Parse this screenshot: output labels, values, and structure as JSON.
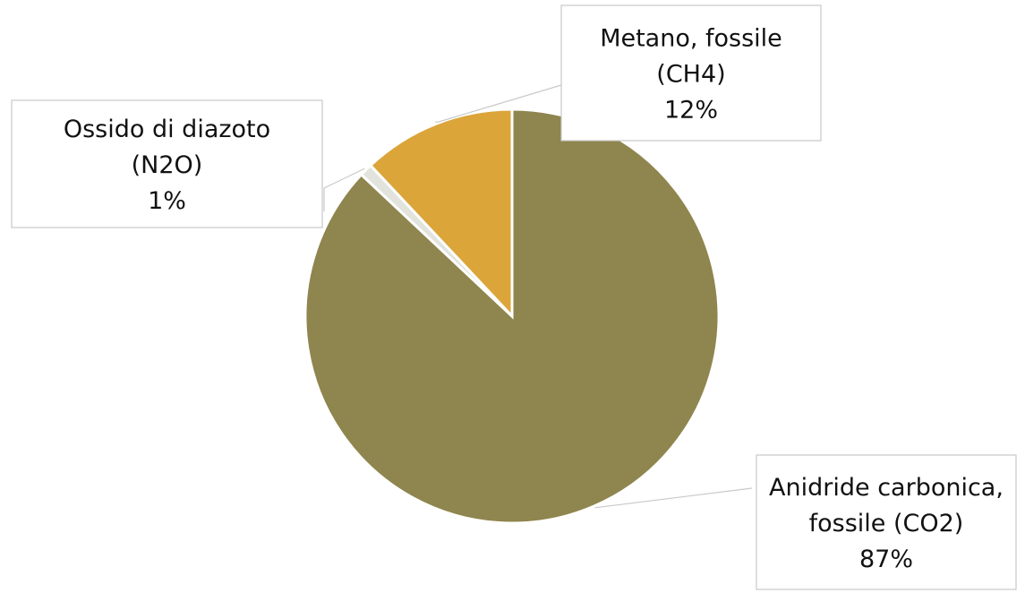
{
  "chart_data": {
    "type": "pie",
    "title": "",
    "slices": [
      {
        "category": "Anidride carbonica, fossile (CO2)",
        "label_lines": [
          "Anidride carbonica,",
          "fossile (CO2)"
        ],
        "value": 87,
        "percent_label": "87%",
        "color": "#8f854e"
      },
      {
        "category": "Ossido di diazoto (N2O)",
        "label_lines": [
          "Ossido di diazoto",
          "(N2O)"
        ],
        "value": 1,
        "percent_label": "1%",
        "color": "#e3e3dd"
      },
      {
        "category": "Metano, fossile (CH4)",
        "label_lines": [
          "Metano, fossile",
          "(CH4)"
        ],
        "value": 12,
        "percent_label": "12%",
        "color": "#dba53a"
      }
    ],
    "start_angle_deg": 0,
    "direction": "clockwise",
    "legend": "none",
    "data_labels": "callouts"
  }
}
